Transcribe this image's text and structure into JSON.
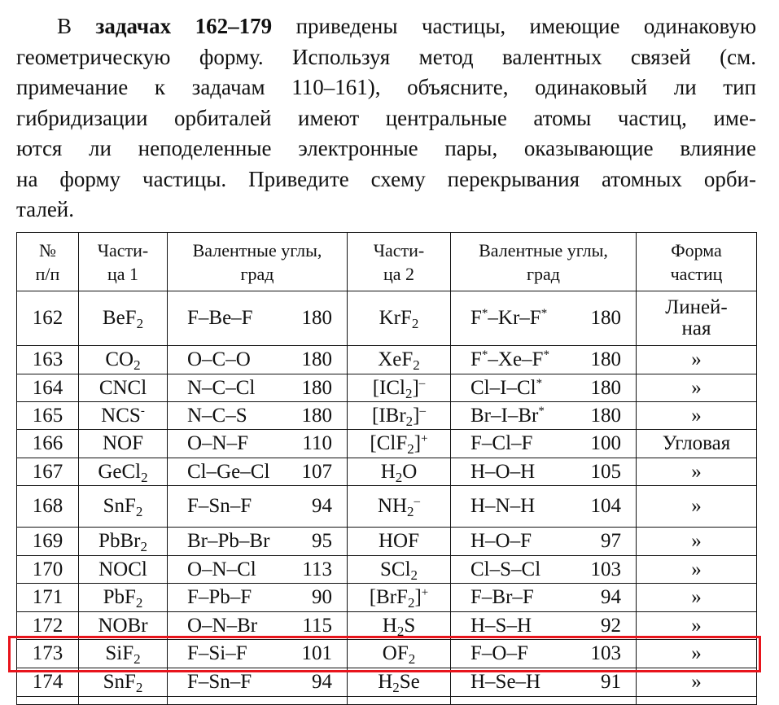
{
  "paragraph": {
    "line1_pre": "В ",
    "line1_bold": "задачах 162–179",
    "line1_post": " приведены частицы, имеющие одинаковую",
    "lines": [
      "геометрическую форму. Используя метод валентных связей (см.",
      "примечание к задачам 110–161), объясните, одинаковый ли тип",
      "гибридизации орбиталей имеют центральные атомы частиц, име-",
      "ются ли неподеленные электронные пары, оказывающие влияние",
      "на форму частицы. Приведите схему перекрывания атомных орби-",
      "талей."
    ]
  },
  "table": {
    "headers": [
      [
        "№",
        "п/п"
      ],
      [
        "Части-",
        "ца 1"
      ],
      [
        "Валентные углы,",
        "град"
      ],
      [
        "Части-",
        "ца 2"
      ],
      [
        "Валентные углы,",
        "град"
      ],
      [
        "Форма",
        "частиц"
      ]
    ],
    "rows": [
      {
        "n": "162",
        "p1": [
          [
            "BeF"
          ],
          [
            "2",
            "sub"
          ]
        ],
        "a1": [
          [
            "F–Be–F"
          ]
        ],
        "v1": "180",
        "p2": [
          [
            "KrF"
          ],
          [
            "2",
            "sub"
          ]
        ],
        "a2": [
          [
            "F"
          ],
          [
            "*",
            "sup"
          ],
          [
            "–Kr–F"
          ],
          [
            "*",
            "sup"
          ]
        ],
        "v2": "180",
        "shape": [
          "Линей-",
          "ная"
        ],
        "h": 67
      },
      {
        "n": "163",
        "p1": [
          [
            "CO"
          ],
          [
            "2",
            "sub"
          ]
        ],
        "a1": [
          [
            "O–C–O"
          ]
        ],
        "v1": "180",
        "p2": [
          [
            "XeF"
          ],
          [
            "2",
            "sub"
          ]
        ],
        "a2": [
          [
            "F"
          ],
          [
            "*",
            "sup"
          ],
          [
            "–Xe–F"
          ],
          [
            "*",
            "sup"
          ]
        ],
        "v2": "180",
        "shape": [
          "»"
        ],
        "h": 35
      },
      {
        "n": "164",
        "p1": [
          [
            "CNCl"
          ]
        ],
        "a1": [
          [
            "N–C–Cl"
          ]
        ],
        "v1": "180",
        "p2": [
          [
            "[ICl"
          ],
          [
            "2",
            "sub"
          ],
          [
            "]"
          ],
          [
            "–",
            "sup"
          ]
        ],
        "a2": [
          [
            "Cl–I–Cl"
          ],
          [
            "*",
            "sup"
          ]
        ],
        "v2": "180",
        "shape": [
          "»"
        ],
        "h": 34
      },
      {
        "n": "165",
        "p1": [
          [
            "NCS"
          ],
          [
            "-",
            "sup"
          ]
        ],
        "a1": [
          [
            "N–C–S"
          ]
        ],
        "v1": "180",
        "p2": [
          [
            "[IBr"
          ],
          [
            "2",
            "sub"
          ],
          [
            "]"
          ],
          [
            "–",
            "sup"
          ]
        ],
        "a2": [
          [
            "Br–I–Br"
          ],
          [
            "*",
            "sup"
          ]
        ],
        "v2": "180",
        "shape": [
          "»"
        ],
        "h": 34
      },
      {
        "n": "166",
        "p1": [
          [
            "NOF"
          ]
        ],
        "a1": [
          [
            "O–N–F"
          ]
        ],
        "v1": "110",
        "p2": [
          [
            "[ClF"
          ],
          [
            "2",
            "sub"
          ],
          [
            "]"
          ],
          [
            "+",
            "sup"
          ]
        ],
        "a2": [
          [
            "F–Cl–F"
          ]
        ],
        "v2": "100",
        "shape": [
          "Угловая"
        ],
        "h": 35
      },
      {
        "n": "167",
        "p1": [
          [
            "GeCl"
          ],
          [
            "2",
            "sub"
          ]
        ],
        "a1": [
          [
            "Cl–Ge–Cl"
          ]
        ],
        "v1": "107",
        "p2": [
          [
            "H"
          ],
          [
            "2",
            "sub"
          ],
          [
            "O"
          ]
        ],
        "a2": [
          [
            "H–O–H"
          ]
        ],
        "v2": "105",
        "shape": [
          "»"
        ],
        "h": 34
      },
      {
        "n": "168",
        "p1": [
          [
            "SnF"
          ],
          [
            "2",
            "sub"
          ]
        ],
        "a1": [
          [
            "F–Sn–F"
          ]
        ],
        "v1": "94",
        "p2": [
          [
            "NH"
          ],
          [
            "2",
            "sub"
          ],
          [
            "–",
            "sup"
          ]
        ],
        "a2": [
          [
            "H–N–H"
          ]
        ],
        "v2": "104",
        "shape": [
          "»"
        ],
        "h": 51
      },
      {
        "n": "169",
        "p1": [
          [
            "PbBr"
          ],
          [
            "2",
            "sub"
          ]
        ],
        "a1": [
          [
            "Br–Pb–Br"
          ]
        ],
        "v1": "95",
        "p2": [
          [
            "HOF"
          ]
        ],
        "a2": [
          [
            "H–O–F"
          ]
        ],
        "v2": "97",
        "shape": [
          "»"
        ],
        "h": 35
      },
      {
        "n": "170",
        "p1": [
          [
            "NOCl"
          ]
        ],
        "a1": [
          [
            "O–N–Cl"
          ]
        ],
        "v1": "113",
        "p2": [
          [
            "SCl"
          ],
          [
            "2",
            "sub"
          ]
        ],
        "a2": [
          [
            "Cl–S–Cl"
          ]
        ],
        "v2": "103",
        "shape": [
          "»"
        ],
        "h": 34
      },
      {
        "n": "171",
        "p1": [
          [
            "PbF"
          ],
          [
            "2",
            "sub"
          ]
        ],
        "a1": [
          [
            "F–Pb–F"
          ]
        ],
        "v1": "90",
        "p2": [
          [
            "[BrF"
          ],
          [
            "2",
            "sub"
          ],
          [
            "]"
          ],
          [
            "+",
            "sup"
          ]
        ],
        "a2": [
          [
            "F–Br–F"
          ]
        ],
        "v2": "94",
        "shape": [
          "»"
        ],
        "h": 35
      },
      {
        "n": "172",
        "p1": [
          [
            "NOBr"
          ]
        ],
        "a1": [
          [
            "O–N–Br"
          ]
        ],
        "v1": "115",
        "p2": [
          [
            "H"
          ],
          [
            "2",
            "sub"
          ],
          [
            "S"
          ]
        ],
        "a2": [
          [
            "H–S–H"
          ]
        ],
        "v2": "92",
        "shape": [
          "»"
        ],
        "h": 34
      },
      {
        "n": "173",
        "p1": [
          [
            "SiF"
          ],
          [
            "2",
            "sub"
          ]
        ],
        "a1": [
          [
            "F–Si–F"
          ]
        ],
        "v1": "101",
        "p2": [
          [
            "OF"
          ],
          [
            "2",
            "sub"
          ]
        ],
        "a2": [
          [
            "F–O–F"
          ]
        ],
        "v2": "103",
        "shape": [
          "»"
        ],
        "h": 35,
        "highlighted": true
      },
      {
        "n": "174",
        "p1": [
          [
            "SnF"
          ],
          [
            "2",
            "sub"
          ]
        ],
        "a1": [
          [
            "F–Sn–F"
          ]
        ],
        "v1": "94",
        "p2": [
          [
            "H"
          ],
          [
            "2",
            "sub"
          ],
          [
            "Se"
          ]
        ],
        "a2": [
          [
            "H–Se–H"
          ]
        ],
        "v2": "91",
        "shape": [
          "»"
        ],
        "h": 35
      }
    ]
  },
  "colors": {
    "highlight": "#e8141c"
  }
}
